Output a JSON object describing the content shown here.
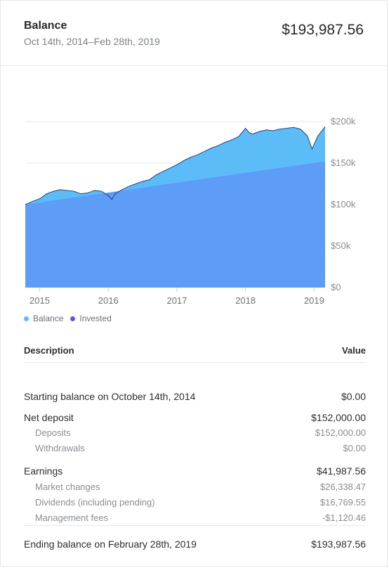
{
  "header": {
    "title": "Balance",
    "date_range": "Oct 14th, 2014–Feb 28th, 2019",
    "total": "$193,987.56"
  },
  "legend": {
    "balance_label": "Balance",
    "invested_label": "Invested"
  },
  "colors": {
    "balance": "#5bbcf7",
    "invested": "#5d9cf7",
    "line": "#2d3e73",
    "grid": "#e6e8eb",
    "legend_balance_dot": "#5bbcf7",
    "legend_invested_dot": "#6b4fe0"
  },
  "chart_data": {
    "type": "area",
    "x_start": 2014.79,
    "x_end": 2019.16,
    "xticks": [
      "2015",
      "2016",
      "2017",
      "2018",
      "2019"
    ],
    "xtick_values": [
      2015,
      2016,
      2017,
      2018,
      2019
    ],
    "ylim": [
      0,
      200000
    ],
    "yticks": [
      "$0",
      "$50k",
      "$100k",
      "$150k",
      "$200k"
    ],
    "ytick_values": [
      0,
      50000,
      100000,
      150000,
      200000
    ],
    "grid": true,
    "legend_position": "bottom-left",
    "series": [
      {
        "name": "Balance",
        "x": [
          2014.79,
          2014.9,
          2015.0,
          2015.1,
          2015.2,
          2015.3,
          2015.4,
          2015.5,
          2015.6,
          2015.7,
          2015.8,
          2015.9,
          2016.0,
          2016.05,
          2016.1,
          2016.2,
          2016.3,
          2016.4,
          2016.5,
          2016.6,
          2016.7,
          2016.8,
          2016.9,
          2017.0,
          2017.1,
          2017.2,
          2017.3,
          2017.4,
          2017.5,
          2017.6,
          2017.7,
          2017.8,
          2017.9,
          2018.0,
          2018.05,
          2018.1,
          2018.2,
          2018.3,
          2018.4,
          2018.5,
          2018.6,
          2018.7,
          2018.8,
          2018.9,
          2018.97,
          2019.05,
          2019.16
        ],
        "values": [
          100000,
          104000,
          107000,
          113000,
          116000,
          118000,
          117000,
          116000,
          113000,
          114000,
          117000,
          116000,
          111000,
          106000,
          113000,
          118000,
          122000,
          125000,
          128000,
          130000,
          136000,
          140000,
          144000,
          148000,
          153000,
          157000,
          160000,
          164000,
          168000,
          171000,
          175000,
          178000,
          182000,
          192000,
          187000,
          185000,
          188000,
          190000,
          189000,
          191000,
          192000,
          193000,
          191000,
          183000,
          167000,
          182000,
          194000
        ]
      },
      {
        "name": "Invested",
        "x": [
          2014.79,
          2019.16
        ],
        "values": [
          100000,
          152000
        ]
      }
    ]
  },
  "table": {
    "header_description": "Description",
    "header_value": "Value",
    "rows": [
      {
        "label": "Starting balance on October 14th, 2014",
        "value": "$0.00",
        "type": "main"
      },
      {
        "label": "Net deposit",
        "value": "$152,000.00",
        "type": "main"
      },
      {
        "label": "Deposits",
        "value": "$152,000.00",
        "type": "sub"
      },
      {
        "label": "Withdrawals",
        "value": "$0.00",
        "type": "sub"
      },
      {
        "label": "Earnings",
        "value": "$41,987.56",
        "type": "main"
      },
      {
        "label": "Market changes",
        "value": "$26,338.47",
        "type": "sub"
      },
      {
        "label": "Dividends (including pending)",
        "value": "$16,769.55",
        "type": "sub"
      },
      {
        "label": "Management fees",
        "value": "-$1,120.46",
        "type": "sub"
      }
    ],
    "ending_label": "Ending balance on February 28th, 2019",
    "ending_value": "$193,987.56"
  }
}
